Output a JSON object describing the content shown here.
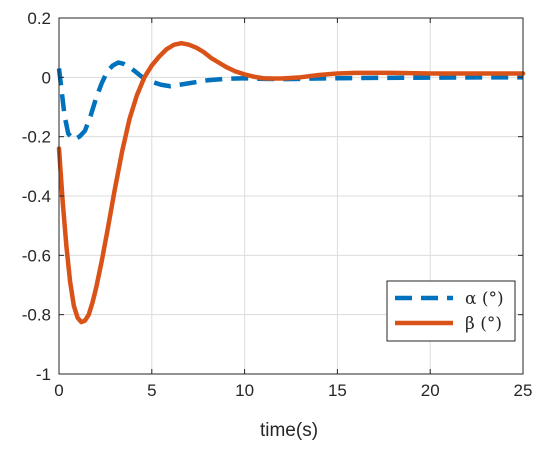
{
  "chart_data": {
    "type": "line",
    "xlabel": "time(s)",
    "ylabel": "",
    "title": "",
    "xlim": [
      0,
      25
    ],
    "ylim": [
      -1,
      0.2
    ],
    "xticks": [
      0,
      5,
      10,
      15,
      20,
      25
    ],
    "yticks": [
      -1,
      -0.8,
      -0.6,
      -0.4,
      -0.2,
      0,
      0.2
    ],
    "ytick_labels": [
      "-1",
      "-0.8",
      "-0.6",
      "-0.4",
      "-0.2",
      "0",
      "0.2"
    ],
    "xtick_labels": [
      "0",
      "5",
      "10",
      "15",
      "20",
      "25"
    ],
    "grid": true,
    "legend_position": "bottom-right",
    "series": [
      {
        "name": "α (°)",
        "color": "#0072BD",
        "style": "dashed",
        "x": [
          0,
          0.15,
          0.3,
          0.5,
          0.8,
          1.1,
          1.4,
          1.7,
          2.0,
          2.3,
          2.6,
          2.9,
          3.2,
          3.5,
          3.8,
          4.1,
          4.5,
          5.0,
          5.5,
          6.0,
          6.5,
          7.0,
          8.0,
          9.0,
          10.0,
          11.0,
          12.0,
          13.0,
          15.0,
          17.0,
          20.0,
          23.0,
          25.0
        ],
        "y": [
          0.03,
          -0.05,
          -0.13,
          -0.19,
          -0.21,
          -0.2,
          -0.18,
          -0.13,
          -0.07,
          -0.02,
          0.02,
          0.04,
          0.05,
          0.045,
          0.035,
          0.02,
          0.0,
          -0.015,
          -0.025,
          -0.03,
          -0.025,
          -0.02,
          -0.01,
          -0.005,
          -0.003,
          -0.005,
          -0.006,
          -0.005,
          -0.003,
          -0.002,
          -0.001,
          0.0,
          0.0
        ]
      },
      {
        "name": "β (°)",
        "color": "#D95319",
        "style": "solid",
        "x": [
          0,
          0.2,
          0.4,
          0.6,
          0.8,
          1.0,
          1.2,
          1.4,
          1.6,
          1.8,
          2.0,
          2.3,
          2.6,
          3.0,
          3.4,
          3.8,
          4.2,
          4.6,
          5.0,
          5.4,
          5.8,
          6.2,
          6.6,
          7.0,
          7.4,
          7.8,
          8.2,
          8.6,
          9.0,
          9.5,
          10.0,
          10.5,
          11.0,
          11.5,
          12.0,
          13.0,
          14.0,
          15.0,
          16.0,
          18.0,
          20.0,
          22.0,
          25.0
        ],
        "y": [
          -0.24,
          -0.42,
          -0.57,
          -0.69,
          -0.77,
          -0.81,
          -0.825,
          -0.82,
          -0.8,
          -0.76,
          -0.71,
          -0.62,
          -0.52,
          -0.38,
          -0.25,
          -0.14,
          -0.06,
          0.0,
          0.04,
          0.07,
          0.095,
          0.11,
          0.115,
          0.11,
          0.1,
          0.085,
          0.065,
          0.05,
          0.035,
          0.02,
          0.01,
          0.002,
          -0.003,
          -0.004,
          -0.004,
          0.0,
          0.008,
          0.013,
          0.015,
          0.015,
          0.013,
          0.013,
          0.013
        ]
      }
    ]
  }
}
